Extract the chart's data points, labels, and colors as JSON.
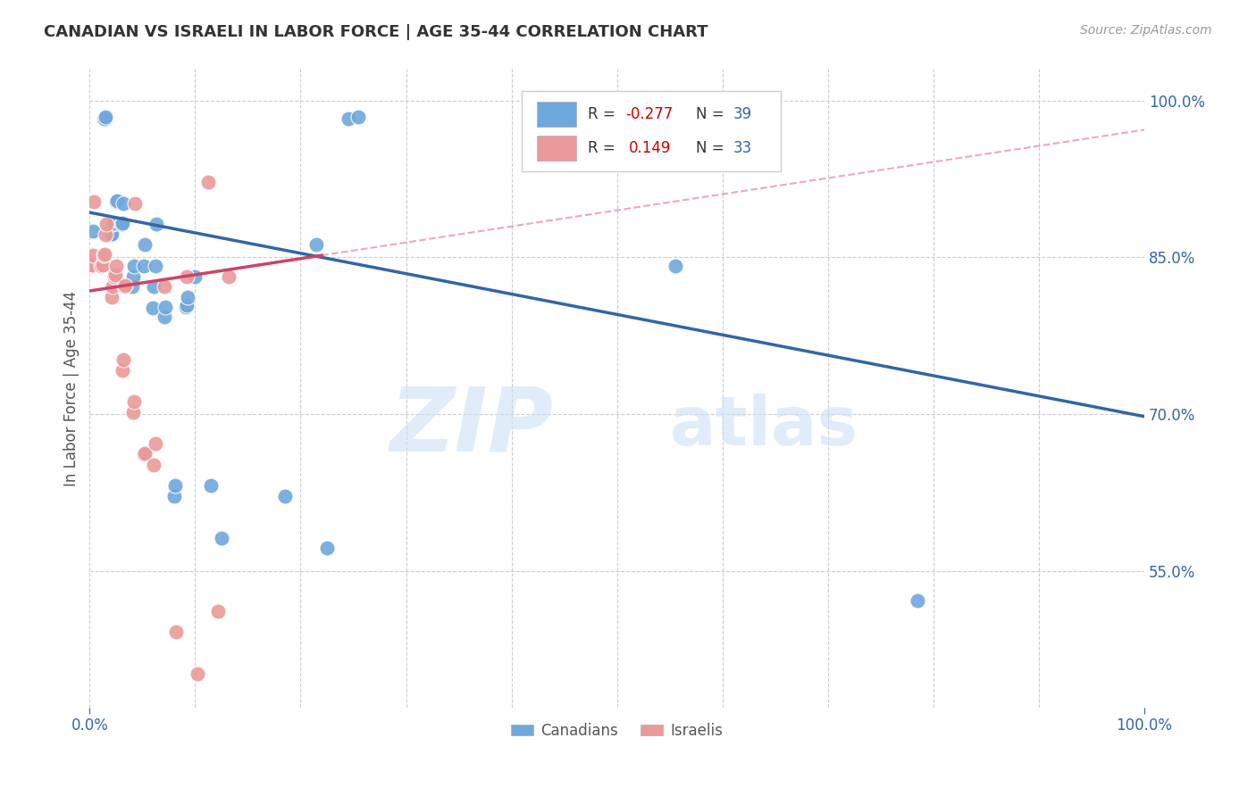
{
  "title": "CANADIAN VS ISRAELI IN LABOR FORCE | AGE 35-44 CORRELATION CHART",
  "source": "Source: ZipAtlas.com",
  "ylabel": "In Labor Force | Age 35-44",
  "xlim": [
    0.0,
    1.0
  ],
  "ylim": [
    0.42,
    1.03
  ],
  "canadian_R": -0.277,
  "canadian_N": 39,
  "israeli_R": 0.149,
  "israeli_N": 33,
  "canadian_color": "#6fa8dc",
  "israeli_color": "#ea9999",
  "canadian_line_color": "#3465a4",
  "israeli_line_color": "#cc4466",
  "watermark_zip": "ZIP",
  "watermark_atlas": "atlas",
  "grid_color": "#cccccc",
  "background_color": "#ffffff",
  "canadian_line_x0": 0.0,
  "canadian_line_y0": 0.893,
  "canadian_line_x1": 1.0,
  "canadian_line_y1": 0.698,
  "israeli_line_solid_x0": 0.0,
  "israeli_line_solid_y0": 0.818,
  "israeli_line_solid_x1": 0.22,
  "israeli_line_solid_y1": 0.852,
  "israeli_line_dash_x0": 0.22,
  "israeli_line_dash_y0": 0.852,
  "israeli_line_dash_x1": 1.0,
  "israeli_line_dash_y1": 0.972,
  "canadian_x": [
    0.003,
    0.013,
    0.014,
    0.015,
    0.02,
    0.021,
    0.022,
    0.023,
    0.025,
    0.026,
    0.03,
    0.031,
    0.032,
    0.04,
    0.041,
    0.042,
    0.051,
    0.052,
    0.06,
    0.061,
    0.062,
    0.063,
    0.071,
    0.072,
    0.08,
    0.081,
    0.091,
    0.092,
    0.093,
    0.1,
    0.115,
    0.125,
    0.185,
    0.215,
    0.225,
    0.245,
    0.255,
    0.555,
    0.785
  ],
  "canadian_y": [
    0.875,
    0.983,
    0.983,
    0.984,
    0.872,
    0.873,
    0.882,
    0.883,
    0.903,
    0.904,
    0.882,
    0.883,
    0.902,
    0.822,
    0.832,
    0.842,
    0.842,
    0.862,
    0.802,
    0.822,
    0.842,
    0.882,
    0.793,
    0.803,
    0.622,
    0.632,
    0.803,
    0.804,
    0.812,
    0.832,
    0.632,
    0.582,
    0.622,
    0.862,
    0.572,
    0.983,
    0.984,
    0.842,
    0.522
  ],
  "israeli_x": [
    0.001,
    0.002,
    0.003,
    0.004,
    0.011,
    0.012,
    0.013,
    0.014,
    0.015,
    0.016,
    0.021,
    0.022,
    0.023,
    0.024,
    0.025,
    0.031,
    0.032,
    0.033,
    0.034,
    0.041,
    0.042,
    0.043,
    0.051,
    0.052,
    0.061,
    0.062,
    0.071,
    0.082,
    0.092,
    0.102,
    0.112,
    0.122,
    0.132
  ],
  "israeli_y": [
    0.842,
    0.843,
    0.852,
    0.903,
    0.842,
    0.843,
    0.852,
    0.853,
    0.872,
    0.882,
    0.812,
    0.822,
    0.832,
    0.833,
    0.842,
    0.742,
    0.752,
    0.822,
    0.823,
    0.702,
    0.712,
    0.902,
    0.662,
    0.663,
    0.652,
    0.672,
    0.822,
    0.492,
    0.832,
    0.452,
    0.922,
    0.512,
    0.832
  ],
  "ytick_vals": [
    0.55,
    0.7,
    0.85,
    1.0
  ],
  "ytick_labels": [
    "55.0%",
    "70.0%",
    "85.0%",
    "100.0%"
  ],
  "xtick_vals": [
    0.0,
    0.1,
    0.2,
    0.3,
    0.4,
    0.5,
    0.6,
    0.7,
    0.8,
    0.9,
    1.0
  ],
  "legend_R_color": "#cc0000",
  "legend_N_color": "#3465a4"
}
